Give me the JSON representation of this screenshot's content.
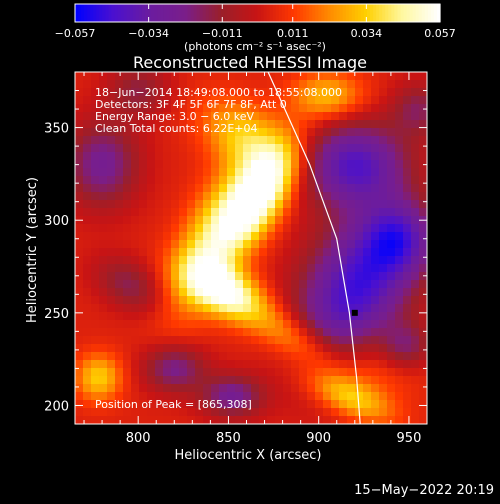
{
  "chart_data": {
    "type": "heatmap",
    "title": "Reconstructed RHESSI Image",
    "xlabel": "Heliocentric X (arcsec)",
    "ylabel": "Heliocentric Y (arcsec)",
    "xlim": [
      765,
      960
    ],
    "ylim": [
      190,
      380
    ],
    "xticks": [
      800,
      850,
      900,
      950
    ],
    "yticks": [
      200,
      250,
      300,
      350
    ],
    "colorbar": {
      "min": -0.057,
      "max": 0.057,
      "tick_values": [
        -0.057,
        -0.034,
        -0.011,
        0.011,
        0.034,
        0.057
      ],
      "tick_labels": [
        "−0.057",
        "−0.034",
        "−0.011",
        "0.011",
        "0.034",
        "0.057"
      ],
      "units_label": "(photons cm⁻² s⁻¹ asec⁻²)",
      "colors": [
        "#0000ff",
        "#4a10d0",
        "#6a1ca0",
        "#7a1e8a",
        "#9a1f2a",
        "#c81414",
        "#ff3800",
        "#ff8c00",
        "#ffd000",
        "#fff8a0",
        "#ffffff"
      ]
    },
    "annotations": [
      "18−Jun−2014 18:49:08.000 to 18:55:08.000",
      "Detectors: 3F 4F 5F 6F 7F 8F, Att 0",
      "Energy Range: 3.0 − 6.0 keV",
      "Clean     Total counts: 6.22E+04"
    ],
    "peak_label": "Position of Peak = [865,308]",
    "peak": [
      865,
      308
    ],
    "marker": [
      920,
      250
    ],
    "limb_curve": [
      [
        872,
        380
      ],
      [
        895,
        330
      ],
      [
        910,
        290
      ],
      [
        917,
        250
      ],
      [
        921,
        215
      ],
      [
        923,
        190
      ]
    ],
    "sources": [
      {
        "x": 868,
        "y": 315,
        "sx": 10,
        "sy": 22,
        "theta": -0.55,
        "amp": 0.055
      },
      {
        "x": 848,
        "y": 262,
        "sx": 16,
        "sy": 9,
        "theta": -0.5,
        "amp": 0.052
      },
      {
        "x": 842,
        "y": 290,
        "sx": 12,
        "sy": 30,
        "theta": -0.45,
        "amp": 0.038
      },
      {
        "x": 858,
        "y": 345,
        "sx": 18,
        "sy": 12,
        "theta": -0.6,
        "amp": 0.028
      },
      {
        "x": 888,
        "y": 235,
        "sx": 22,
        "sy": 8,
        "theta": -0.55,
        "amp": 0.025
      },
      {
        "x": 916,
        "y": 205,
        "sx": 18,
        "sy": 7,
        "theta": -0.4,
        "amp": 0.03
      },
      {
        "x": 905,
        "y": 367,
        "sx": 14,
        "sy": 9,
        "theta": 0.0,
        "amp": 0.027
      },
      {
        "x": 778,
        "y": 215,
        "sx": 9,
        "sy": 9,
        "theta": 0.0,
        "amp": 0.03
      },
      {
        "x": 930,
        "y": 225,
        "sx": 18,
        "sy": 16,
        "theta": 0.0,
        "amp": 0.018
      },
      {
        "x": 920,
        "y": 260,
        "sx": 20,
        "sy": 30,
        "theta": -0.4,
        "amp": -0.052
      },
      {
        "x": 920,
        "y": 330,
        "sx": 20,
        "sy": 16,
        "theta": 0.0,
        "amp": -0.045
      },
      {
        "x": 945,
        "y": 290,
        "sx": 14,
        "sy": 14,
        "theta": 0.0,
        "amp": -0.035
      },
      {
        "x": 780,
        "y": 330,
        "sx": 14,
        "sy": 16,
        "theta": 0.0,
        "amp": -0.03
      },
      {
        "x": 820,
        "y": 220,
        "sx": 12,
        "sy": 9,
        "theta": 0.0,
        "amp": -0.028
      },
      {
        "x": 852,
        "y": 205,
        "sx": 12,
        "sy": 8,
        "theta": 0.0,
        "amp": -0.03
      },
      {
        "x": 795,
        "y": 265,
        "sx": 14,
        "sy": 9,
        "theta": -0.5,
        "amp": -0.02
      },
      {
        "x": 948,
        "y": 232,
        "sx": 10,
        "sy": 9,
        "theta": 0.0,
        "amp": -0.025
      },
      {
        "x": 955,
        "y": 360,
        "sx": 10,
        "sy": 10,
        "theta": 0.0,
        "amp": -0.02
      },
      {
        "x": 800,
        "y": 370,
        "sx": 12,
        "sy": 10,
        "theta": 0.0,
        "amp": -0.018
      }
    ]
  },
  "footer": {
    "timestamp": "15−May−2022 20:19"
  }
}
